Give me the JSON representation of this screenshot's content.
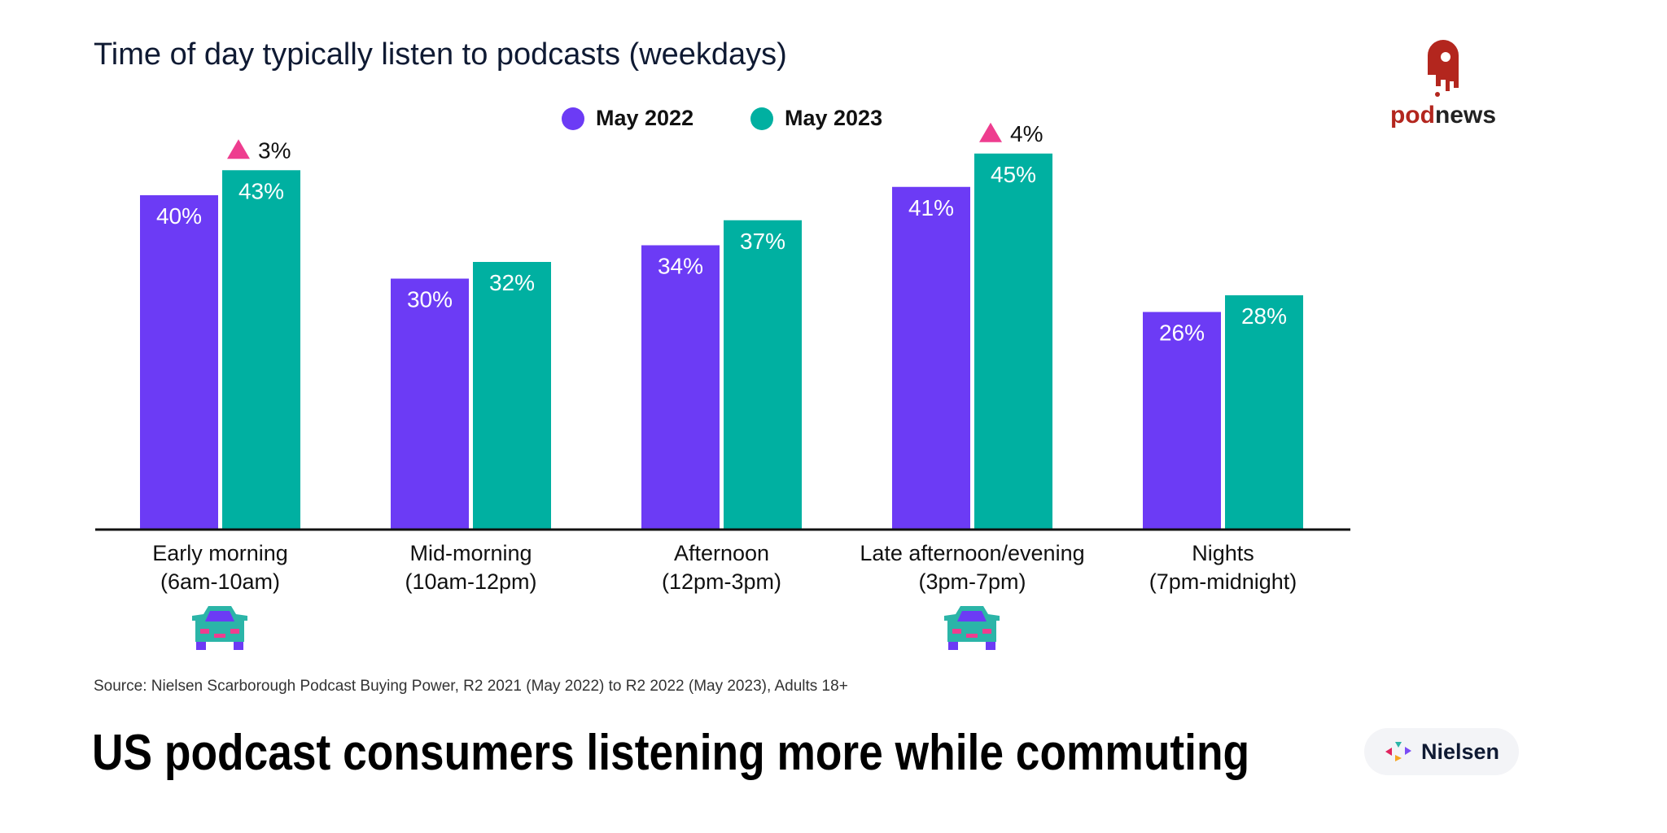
{
  "chart_data": {
    "type": "bar",
    "title": "Time of day typically listen to podcasts (weekdays)",
    "categories": [
      [
        "Early morning",
        "(6am-10am)"
      ],
      [
        "Mid-morning",
        "(10am-12pm)"
      ],
      [
        "Afternoon",
        "(12pm-3pm)"
      ],
      [
        "Late afternoon/evening",
        "(3pm-7pm)"
      ],
      [
        "Nights",
        "(7pm-midnight)"
      ]
    ],
    "series": [
      {
        "name": "May 2022",
        "color": "#6c3bf5",
        "values": [
          40,
          30,
          34,
          41,
          26
        ],
        "labels": [
          "40%",
          "30%",
          "34%",
          "41%",
          "26%"
        ]
      },
      {
        "name": "May 2023",
        "color": "#00b0a1",
        "values": [
          43,
          32,
          37,
          45,
          28
        ],
        "labels": [
          "43%",
          "32%",
          "37%",
          "45%",
          "28%"
        ]
      }
    ],
    "annotations": [
      {
        "category": 0,
        "text": "3%",
        "icon": "triangle-up",
        "color": "#ee3d8f"
      },
      {
        "category": 3,
        "text": "4%",
        "icon": "triangle-up",
        "color": "#ee3d8f"
      }
    ],
    "commute_icons": [
      0,
      3
    ],
    "ylim": [
      0,
      50
    ],
    "grid": false,
    "legend": "top-center"
  },
  "source": "Source: Nielsen Scarborough Podcast Buying Power, R2 2021 (May 2022) to R2 2022 (May 2023), Adults 18+",
  "headline": "US podcast consumers listening more while commuting",
  "logos": {
    "podnews": "podnews",
    "nielsen": "Nielsen"
  }
}
